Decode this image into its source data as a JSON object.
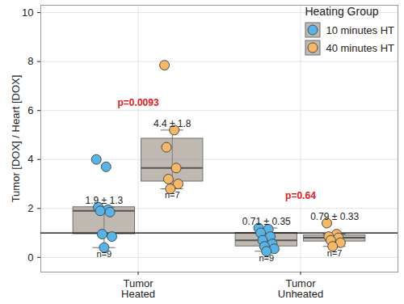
{
  "chart_data": {
    "type": "box",
    "ylabel": "Tumor [DOX] / Heart [DOX]",
    "categories": [
      "Tumor\nHeated",
      "Tumor\nUnheated"
    ],
    "ylim": [
      -0.6,
      10.3
    ],
    "yticks": [
      0,
      2,
      4,
      6,
      8,
      10
    ],
    "grid": true,
    "legend": "top-right",
    "legend_title": "Heating Group",
    "reference_line": 1,
    "series": [
      {
        "name": "10 minutes HT",
        "color": "#56B4E9",
        "values": [
          [
            4.0,
            3.7,
            2.05,
            1.95,
            1.9,
            1.85,
            0.95,
            0.85,
            0.4
          ],
          [
            1.2,
            1.15,
            1.0,
            0.85,
            0.7,
            0.55,
            0.45,
            0.35,
            0.25
          ]
        ],
        "boxes": [
          {
            "whisker_low": 0.4,
            "q1": 0.95,
            "median": 1.9,
            "q3": 2.05,
            "whisker_high": 2.05
          },
          {
            "whisker_low": 0.25,
            "q1": 0.45,
            "median": 0.7,
            "q3": 1.0,
            "whisker_high": 1.2
          }
        ],
        "stat_labels": [
          "1.9 ± 1.3",
          "0.71 ± 0.35"
        ],
        "n_labels": [
          "n=9",
          "n=9"
        ]
      },
      {
        "name": "40 minutes HT",
        "color": "#F7B865",
        "values": [
          [
            7.85,
            5.2,
            4.5,
            3.65,
            3.2,
            3.0,
            2.8
          ],
          [
            1.4,
            0.95,
            0.85,
            0.8,
            0.7,
            0.6,
            0.45
          ]
        ],
        "boxes": [
          {
            "whisker_low": 2.8,
            "q1": 3.1,
            "median": 3.65,
            "q3": 4.85,
            "whisker_high": 5.2
          },
          {
            "whisker_low": 0.45,
            "q1": 0.65,
            "median": 0.8,
            "q3": 0.9,
            "whisker_high": 0.95
          }
        ],
        "stat_labels": [
          "4.4 ± 1.8",
          "0.79 ± 0.33"
        ],
        "n_labels": [
          "n=7",
          "n=7"
        ]
      }
    ],
    "annotations": [
      {
        "text": "p=0.0093",
        "color": "#E41A1C"
      },
      {
        "text": "p=0.64",
        "color": "#E41A1C"
      }
    ]
  }
}
